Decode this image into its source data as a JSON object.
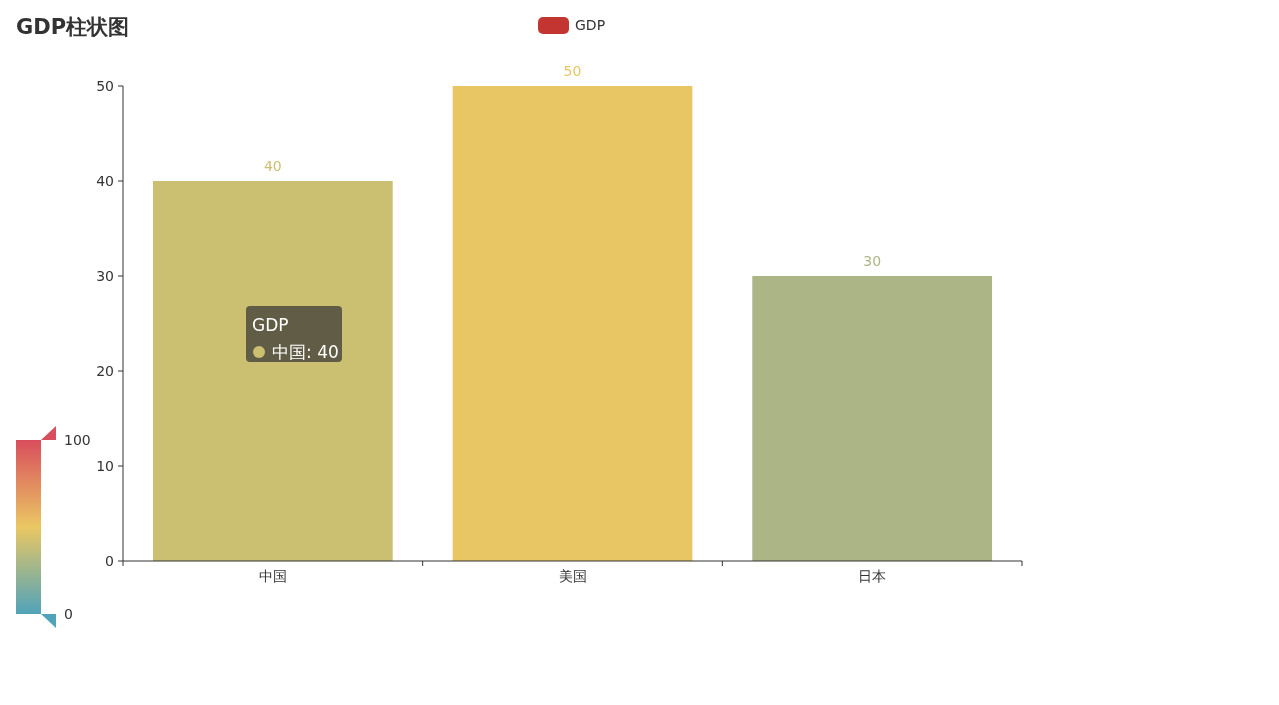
{
  "chart_data": {
    "type": "bar",
    "title": "GDP柱状图",
    "categories": [
      "中国",
      "美国",
      "日本"
    ],
    "series": [
      {
        "name": "GDP",
        "color": "#c23531",
        "values": [
          40,
          50,
          30
        ],
        "colors": [
          "#cbbf72",
          "#e8c664",
          "#acb586"
        ]
      }
    ],
    "ylim": [
      0,
      50
    ],
    "yticks": [
      0,
      10,
      20,
      30,
      40,
      50
    ],
    "clim": [
      0,
      100
    ],
    "cticks": [
      0,
      100
    ],
    "data_labels": true,
    "legend": "top",
    "grid": false,
    "annotations": [
      "GDP\n中国: 40"
    ]
  }
}
